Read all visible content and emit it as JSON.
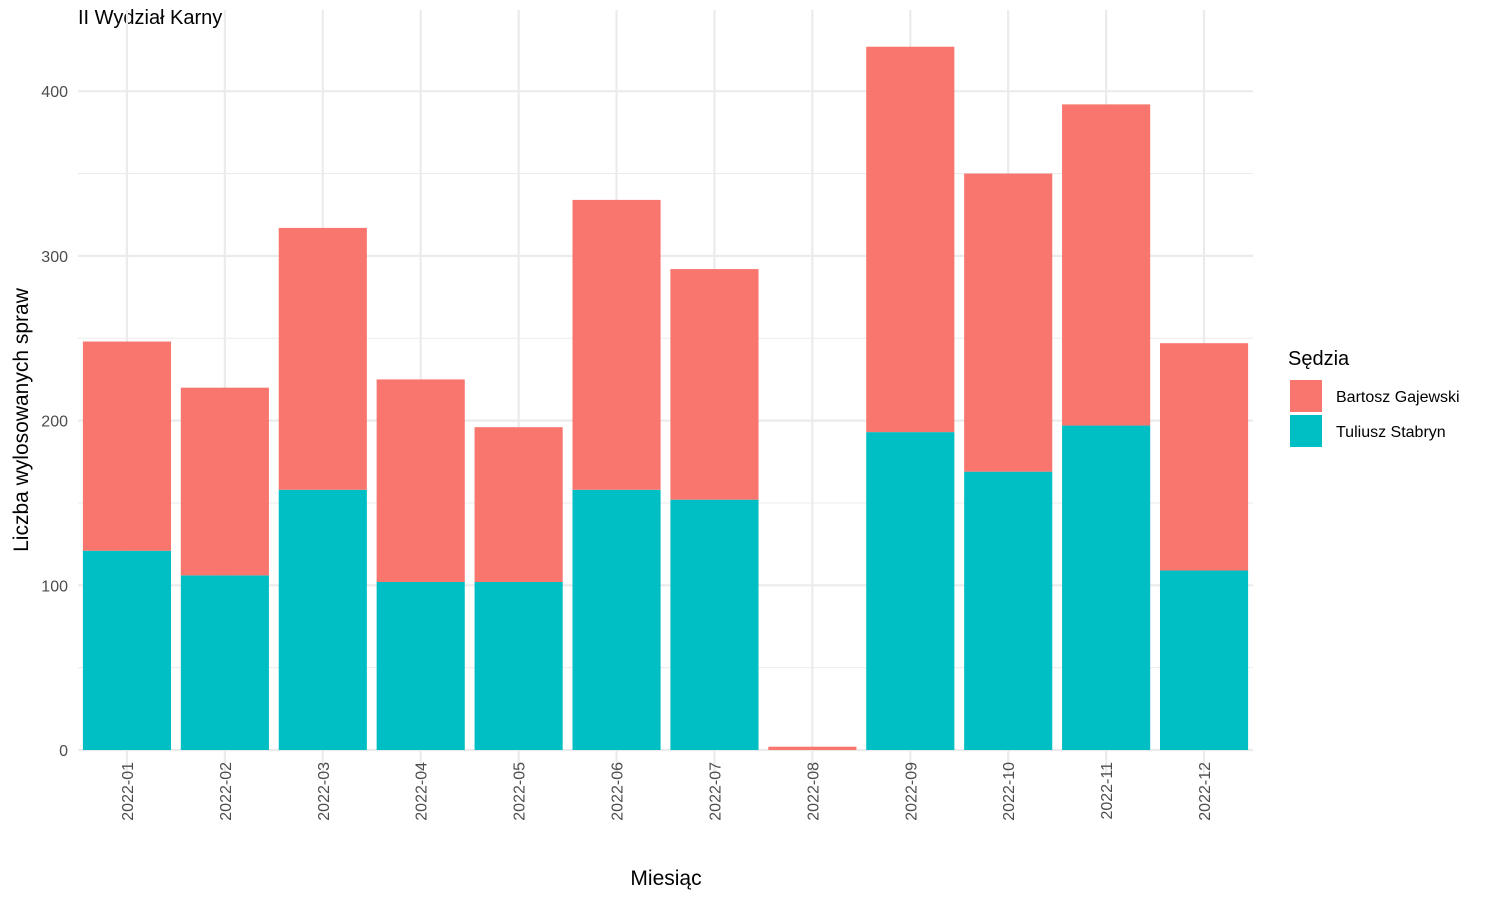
{
  "colors": {
    "bartosz": "#F8766D",
    "tuliusz": "#00BFC4",
    "grid": "#EBEBEB",
    "tick_text": "#4D4D4D"
  },
  "chart_data": {
    "type": "bar",
    "stacked": true,
    "title": "II Wydział Karny",
    "xlabel": "Miesiąc",
    "ylabel": "Liczba wylosowanych spraw",
    "categories": [
      "2022-01",
      "2022-02",
      "2022-03",
      "2022-04",
      "2022-05",
      "2022-06",
      "2022-07",
      "2022-08",
      "2022-09",
      "2022-10",
      "2022-11",
      "2022-12"
    ],
    "series": [
      {
        "name": "Tuliusz Stabryn",
        "values": [
          121,
          106,
          158,
          102,
          102,
          158,
          152,
          0,
          193,
          169,
          197,
          109
        ]
      },
      {
        "name": "Bartosz Gajewski",
        "values": [
          127,
          114,
          159,
          123,
          94,
          176,
          140,
          2,
          234,
          181,
          195,
          138
        ]
      }
    ],
    "ylim": [
      0,
      430
    ],
    "yticks": [
      0,
      100,
      200,
      300,
      400
    ],
    "grid": true,
    "legend": {
      "title": "Sędzia",
      "position": "right",
      "entries": [
        "Bartosz Gajewski",
        "Tuliusz Stabryn"
      ]
    }
  }
}
